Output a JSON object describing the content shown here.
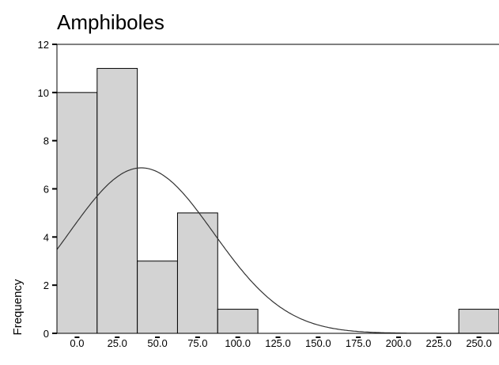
{
  "chart_data": {
    "type": "bar",
    "title": "Amphiboles",
    "xlabel": "",
    "ylabel": "Frequency",
    "x_tick_labels": [
      "0.0",
      "25.0",
      "50.0",
      "75.0",
      "100.0",
      "125.0",
      "150.0",
      "175.0",
      "200.0",
      "225.0",
      "250.0"
    ],
    "y_tick_labels": [
      "0",
      "2",
      "4",
      "6",
      "8",
      "10",
      "12"
    ],
    "xlim": [
      -12.5,
      262.5
    ],
    "ylim": [
      0,
      12
    ],
    "categories": [
      "0.0",
      "25.0",
      "50.0",
      "75.0",
      "100.0",
      "125.0",
      "150.0",
      "175.0",
      "200.0",
      "225.0",
      "250.0"
    ],
    "values": [
      10,
      11,
      3,
      5,
      1,
      0,
      0,
      0,
      0,
      0,
      1
    ],
    "normal_curve": {
      "mean": 40,
      "sd": 45,
      "n": 31,
      "bin_width": 25
    },
    "colors": {
      "bar_fill": "#d3d3d3",
      "bar_stroke": "#000000",
      "curve": "#333333"
    },
    "grid": false
  }
}
